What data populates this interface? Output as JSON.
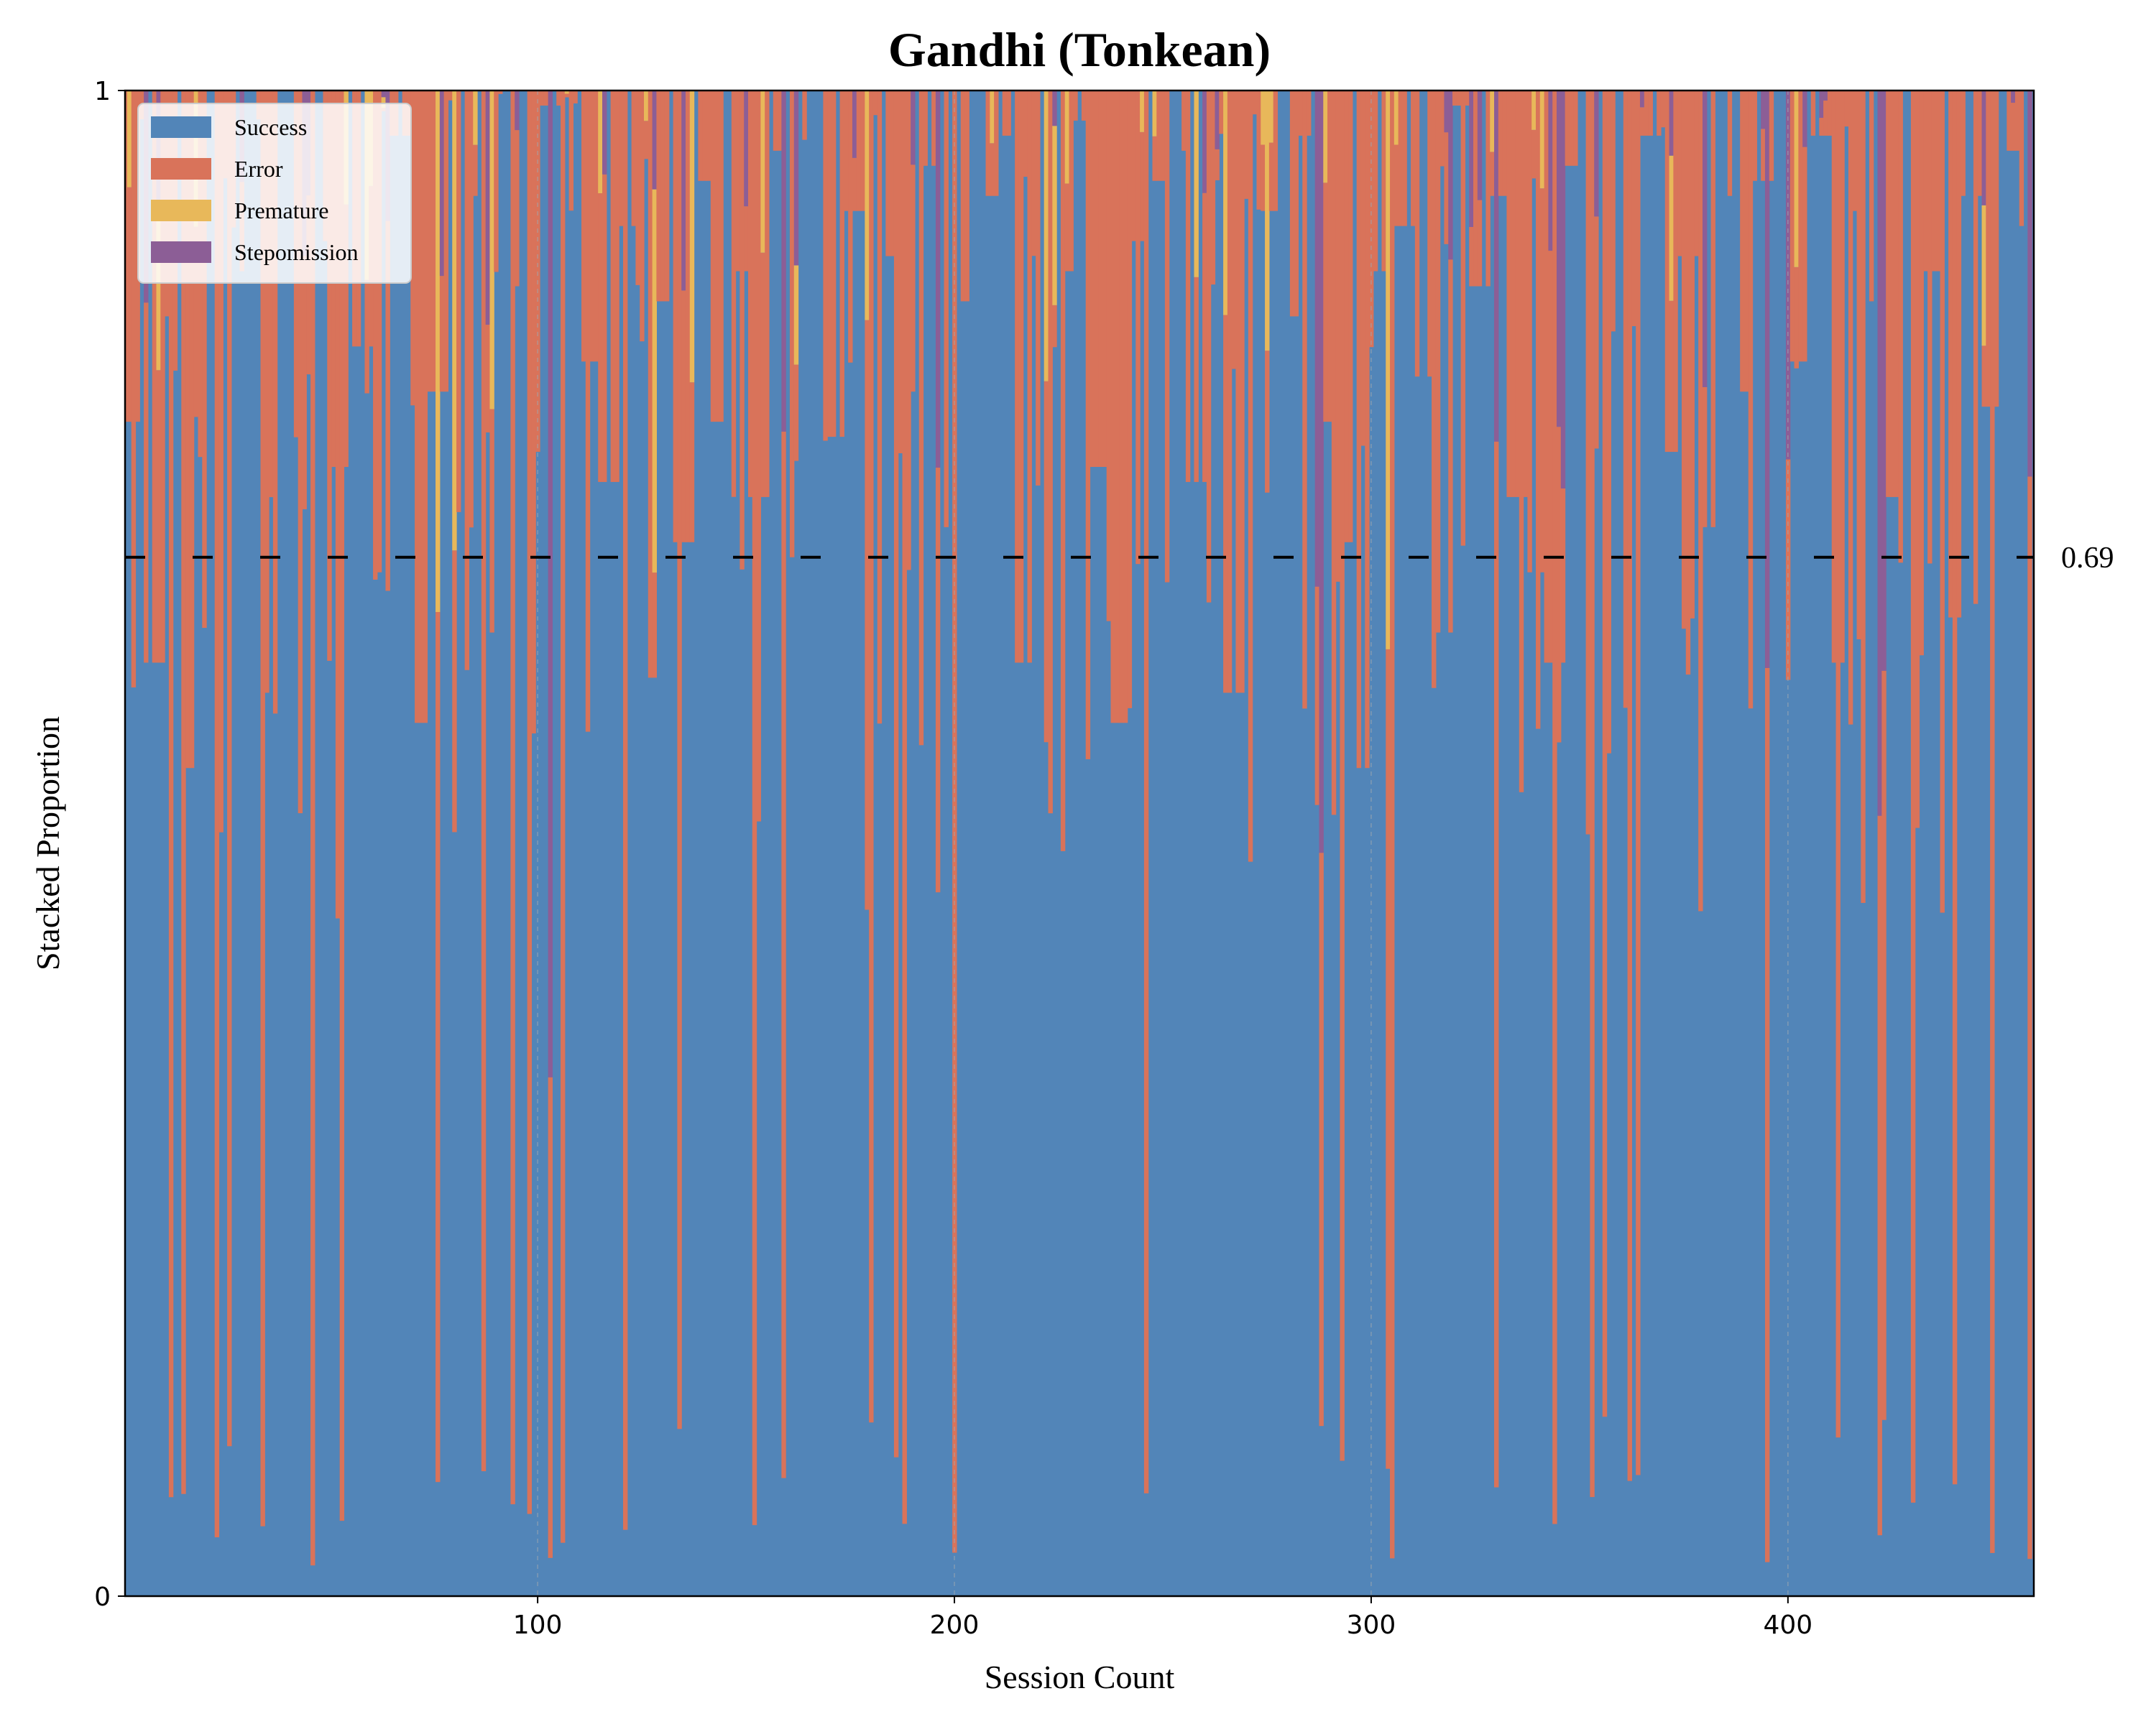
{
  "chart_data": {
    "type": "area",
    "stacked": true,
    "title": "Gandhi (Tonkean)",
    "xlabel": "Session Count",
    "ylabel": "Stacked Proportion",
    "xlim": [
      1,
      459
    ],
    "ylim": [
      0,
      1
    ],
    "xticks": [
      "100",
      "200",
      "300",
      "400"
    ],
    "xtick_values": [
      100,
      200,
      300,
      400
    ],
    "yticks": [
      "0",
      "1"
    ],
    "ytick_values": [
      0,
      1
    ],
    "grid": "vertical dashed at x ticks",
    "legend_position": "top-left",
    "reference_line": {
      "value": 0.69,
      "label": "0.69",
      "style": "dashed",
      "color": "#000000"
    },
    "colors": {
      "Success": "#5285b8",
      "Error": "#d9735a",
      "Premature": "#e8b85a",
      "Stepomission": "#8c5e96"
    },
    "series_order": [
      "Success",
      "Error",
      "Premature",
      "Stepomission"
    ],
    "sessions_summary": "459 sessions; each session shows the proportion of trials by outcome. Values below are estimated from the figure.",
    "series": [
      {
        "name": "Success",
        "segments_note": "baseline success proportion per session block (estimated)",
        "values": [
          0.78,
          0.62,
          0.85,
          0.55,
          0.92,
          0.7,
          0.88,
          0.6,
          0.95,
          0.52,
          0.9,
          0.75,
          0.83,
          0.68,
          0.97,
          0.58,
          0.8,
          0.72,
          0.93,
          0.64,
          0.87,
          0.76,
          0.99,
          0.66,
          0.82,
          0.74,
          0.91,
          0.61,
          0.86,
          0.7,
          0.94,
          0.78,
          0.88,
          0.73,
          0.96,
          0.69,
          0.84,
          0.77,
          0.92,
          0.65,
          0.89,
          0.8,
          0.95,
          0.71,
          0.86,
          0.93,
          0.97,
          0.62,
          0.79,
          0.88,
          0.98,
          0.75,
          0.58,
          0.9,
          0.94,
          0.96,
          0.74,
          0.66,
          0.6,
          0.72,
          0.92,
          0.85,
          0.97,
          0.78,
          0.7,
          0.55,
          0.88,
          0.91,
          0.81,
          0.64,
          0.99,
          0.87,
          0.93,
          0.73,
          0.68,
          0.62,
          0.95,
          0.9,
          0.84,
          0.59,
          0.97,
          0.76,
          0.89,
          0.71,
          0.93,
          0.8,
          0.94,
          0.7,
          0.82,
          0.97,
          0.62,
          0.92,
          0.86,
          0.73,
          0.98,
          0.88,
          0.65,
          0.93,
          0.79,
          0.96,
          0.91
        ]
      },
      {
        "name": "Error"
      },
      {
        "name": "Premature"
      },
      {
        "name": "Stepomission"
      }
    ]
  }
}
